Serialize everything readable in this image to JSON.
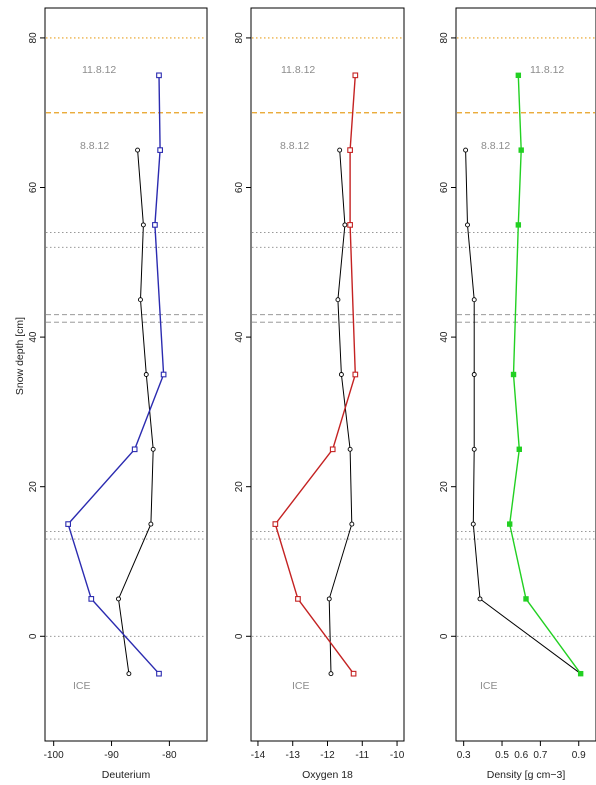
{
  "figure": {
    "ylabel": "Snow depth [cm]"
  },
  "annotations": {
    "date_late": "11.8.12",
    "date_early": "8.8.12",
    "ice": "ICE"
  },
  "colors": {
    "frame": "#000000",
    "early_profile": "#000000",
    "deuterium": "#2b2bb0",
    "oxygen18": "#c42222",
    "density": "#22d022",
    "orange_line": "#e8a020",
    "grey_line": "#8a8a8a",
    "annotation_text": "#8c8c8c"
  },
  "chart_data": [
    {
      "type": "line",
      "xlabel": "Deuterium",
      "ylabel": "Snow depth [cm]",
      "xlim": [
        -101.5,
        -73.5
      ],
      "ylim": [
        -14,
        84
      ],
      "xticks": [
        -100,
        -90,
        -80
      ],
      "yticks": [
        0,
        20,
        40,
        60,
        80
      ],
      "grid": false,
      "series": [
        {
          "marker": "square",
          "color": "#2b2bb0",
          "x": [
            -81.8,
            -81.6,
            -82.5,
            -81,
            -86,
            -97.5,
            -93.5,
            -81.8
          ],
          "y": [
            75,
            65,
            55,
            35,
            25,
            15,
            5,
            -5
          ]
        },
        {
          "marker": "circle",
          "color": "#000000",
          "x": [
            -85.5,
            -84.5,
            -85,
            -84,
            -82.8,
            -83.2,
            -88.8,
            -87
          ],
          "y": [
            65,
            55,
            45,
            35,
            25,
            15,
            5,
            -5
          ]
        }
      ]
    },
    {
      "type": "line",
      "xlabel": "Oxygen 18",
      "ylabel": "Snow depth [cm]",
      "xlim": [
        -14.2,
        -9.8
      ],
      "ylim": [
        -14,
        84
      ],
      "xticks": [
        -14,
        -13,
        -12,
        -11,
        -10
      ],
      "yticks": [
        0,
        20,
        40,
        60,
        80
      ],
      "grid": false,
      "series": [
        {
          "marker": "square",
          "color": "#c42222",
          "x": [
            -11.2,
            -11.35,
            -11.35,
            -11.2,
            -11.85,
            -13.5,
            -12.85,
            -11.25
          ],
          "y": [
            75,
            65,
            55,
            35,
            25,
            15,
            5,
            -5
          ]
        },
        {
          "marker": "circle",
          "color": "#000000",
          "x": [
            -11.65,
            -11.5,
            -11.7,
            -11.6,
            -11.35,
            -11.3,
            -11.95,
            -11.9
          ],
          "y": [
            65,
            55,
            45,
            35,
            25,
            15,
            5,
            -5
          ]
        }
      ]
    },
    {
      "type": "line",
      "xlabel": "Density [g cm−3]",
      "ylabel": "Snow depth [cm]",
      "xlim": [
        0.26,
        0.99
      ],
      "ylim": [
        -14,
        84
      ],
      "xticks": [
        0.3,
        0.5,
        0.7,
        0.9
      ],
      "xtick_labels": [
        "0.3",
        "0.5",
        "0.7",
        "0.9"
      ],
      "extra_xtick_labels": [
        {
          "value": 0.6,
          "label": "0.6"
        }
      ],
      "yticks": [
        0,
        20,
        40,
        60,
        80
      ],
      "grid": false,
      "series": [
        {
          "marker": "filled-square",
          "color": "#22d022",
          "x": [
            0.585,
            0.6,
            0.585,
            0.56,
            0.59,
            0.54,
            0.625,
            0.91
          ],
          "y": [
            75,
            65,
            55,
            35,
            25,
            15,
            5,
            -5
          ]
        },
        {
          "marker": "circle",
          "color": "#000000",
          "x": [
            0.31,
            0.32,
            0.355,
            0.355,
            0.355,
            0.35,
            0.385,
            0.91
          ],
          "y": [
            65,
            55,
            45,
            35,
            25,
            15,
            5,
            -5
          ]
        }
      ]
    }
  ],
  "reference_lines": [
    {
      "y": 80,
      "style": "dotted",
      "color": "#e8a020"
    },
    {
      "y": 70,
      "style": "dashed",
      "color": "#e8a020"
    },
    {
      "y": 54,
      "style": "dotted",
      "color": "#8a8a8a"
    },
    {
      "y": 52,
      "style": "dotted",
      "color": "#8a8a8a"
    },
    {
      "y": 43,
      "style": "dashed",
      "color": "#8a8a8a"
    },
    {
      "y": 42,
      "style": "dashed",
      "color": "#8a8a8a"
    },
    {
      "y": 14,
      "style": "dotted",
      "color": "#8a8a8a"
    },
    {
      "y": 13,
      "style": "dotted",
      "color": "#8a8a8a"
    },
    {
      "y": 0,
      "style": "dotted",
      "color": "#8a8a8a"
    }
  ]
}
